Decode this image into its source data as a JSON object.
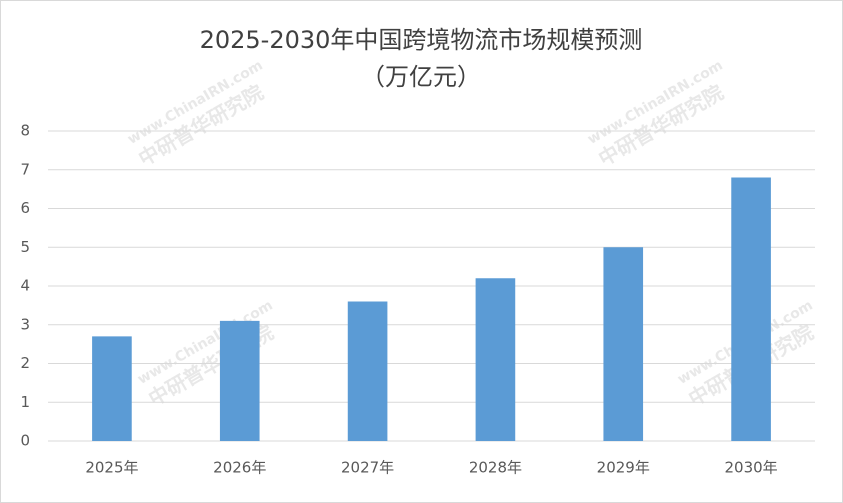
{
  "chart_data": {
    "type": "bar",
    "title": "2025-2030年中国跨境物流市场规模预测",
    "subtitle": "（万亿元）",
    "categories": [
      "2025年",
      "2026年",
      "2027年",
      "2028年",
      "2029年",
      "2030年"
    ],
    "values": [
      2.7,
      3.1,
      3.6,
      4.2,
      5.0,
      6.8
    ],
    "color": "#5b9bd5",
    "ylim": [
      0,
      8
    ],
    "yticks": [
      0,
      1,
      2,
      3,
      4,
      5,
      6,
      7,
      8
    ],
    "grid": true,
    "watermark": [
      "www.ChinaIRN.com",
      "中研普华研究院"
    ]
  }
}
